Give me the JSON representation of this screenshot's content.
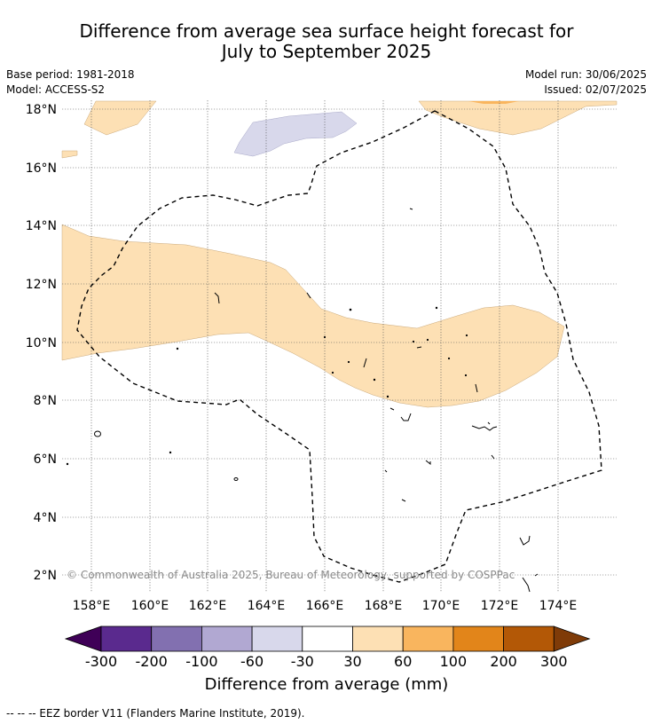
{
  "header": {
    "title_line1": "Difference from average sea surface height forecast for",
    "title_line2": "July to September 2025",
    "base_period": "Base period: 1981-2018",
    "model": "Model: ACCESS-S2",
    "model_run": "Model run: 30/06/2025",
    "issued": "Issued: 02/07/2025"
  },
  "map": {
    "lon_ticks": [
      "158°E",
      "160°E",
      "162°E",
      "164°E",
      "166°E",
      "168°E",
      "170°E",
      "172°E",
      "174°E"
    ],
    "lat_ticks": [
      "18°N",
      "16°N",
      "14°N",
      "12°N",
      "10°N",
      "8°N",
      "6°N",
      "4°N",
      "2°N"
    ],
    "copyright": "© Commonwealth of Australia 2025, Bureau of Meteorology, supported by COSPPac"
  },
  "legend": {
    "tick_labels": [
      "-300",
      "-200",
      "-100",
      "-60",
      "-30",
      "30",
      "60",
      "100",
      "200",
      "300"
    ],
    "colors": [
      "#3f0057",
      "#5a2a8e",
      "#8270b0",
      "#b1a8d2",
      "#d8d8eb",
      "#ffffff",
      "#fde0b4",
      "#f9b55e",
      "#e2851a",
      "#b35806",
      "#7f3b08"
    ],
    "label": "Difference from average (mm)"
  },
  "footer": {
    "eez_note": "--  --  -- EEZ border V11 (Flanders Marine Institute, 2019)."
  }
}
